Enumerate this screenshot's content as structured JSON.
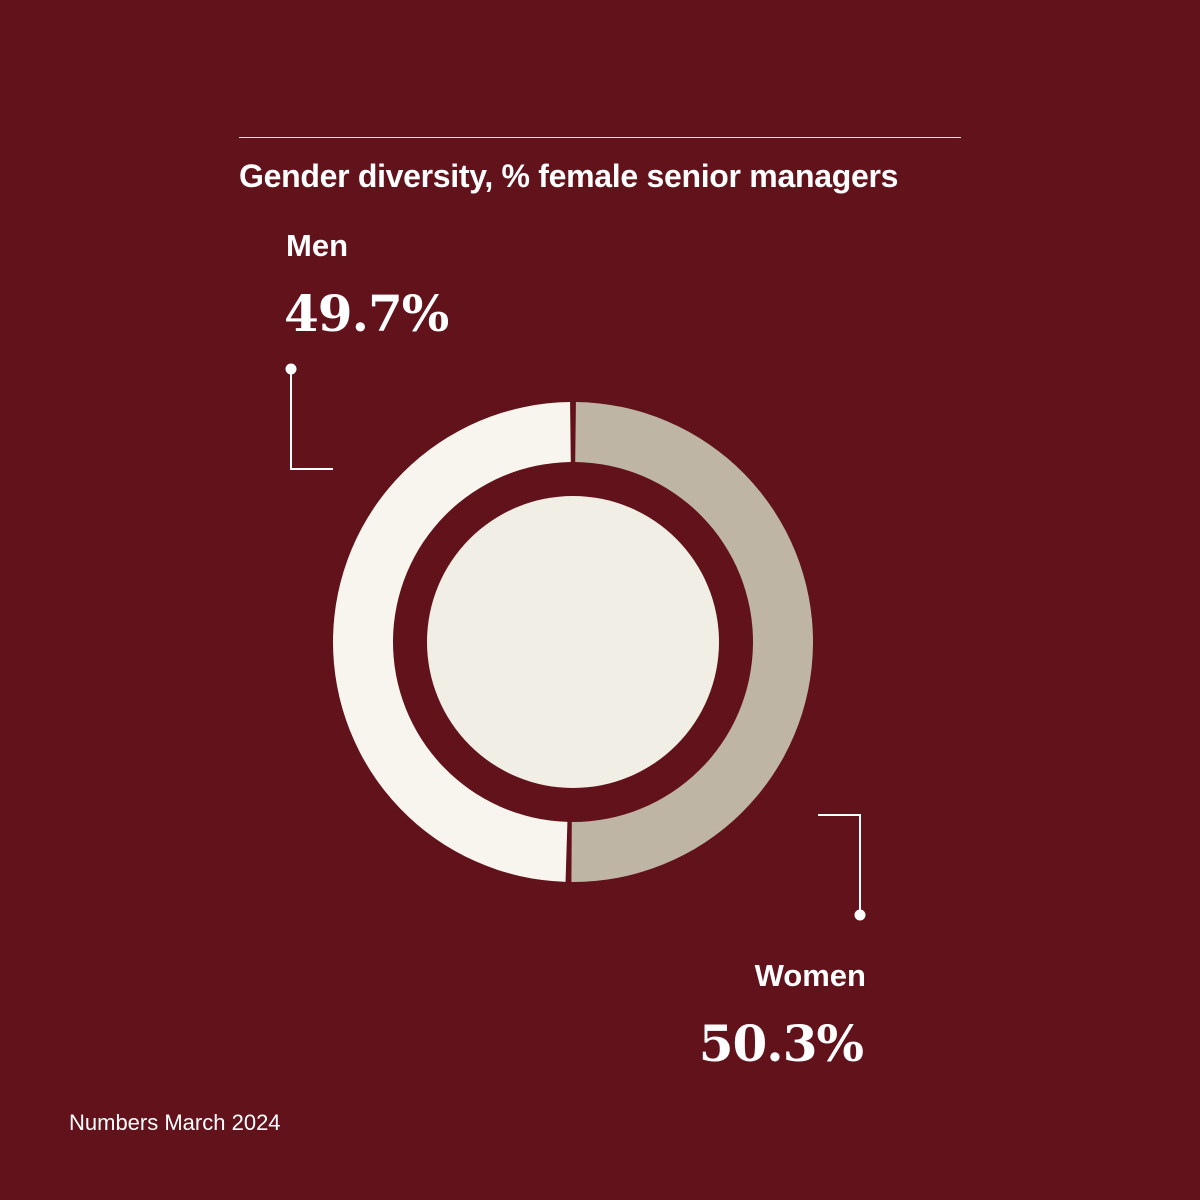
{
  "chart_data": {
    "type": "pie",
    "title": "Gender diversity, % female senior managers",
    "slices": [
      {
        "label": "Men",
        "value": 49.7,
        "display": "49.7%",
        "color": "#f7f5ee"
      },
      {
        "label": "Women",
        "value": 50.3,
        "display": "50.3%",
        "color": "#bfb5a5"
      }
    ],
    "inner_circle_color": "#f0eee5",
    "leader_line_color": "#ffffff"
  },
  "footnote": "Numbers March 2024",
  "colors": {
    "background": "#62121a",
    "text": "#ffffff"
  }
}
